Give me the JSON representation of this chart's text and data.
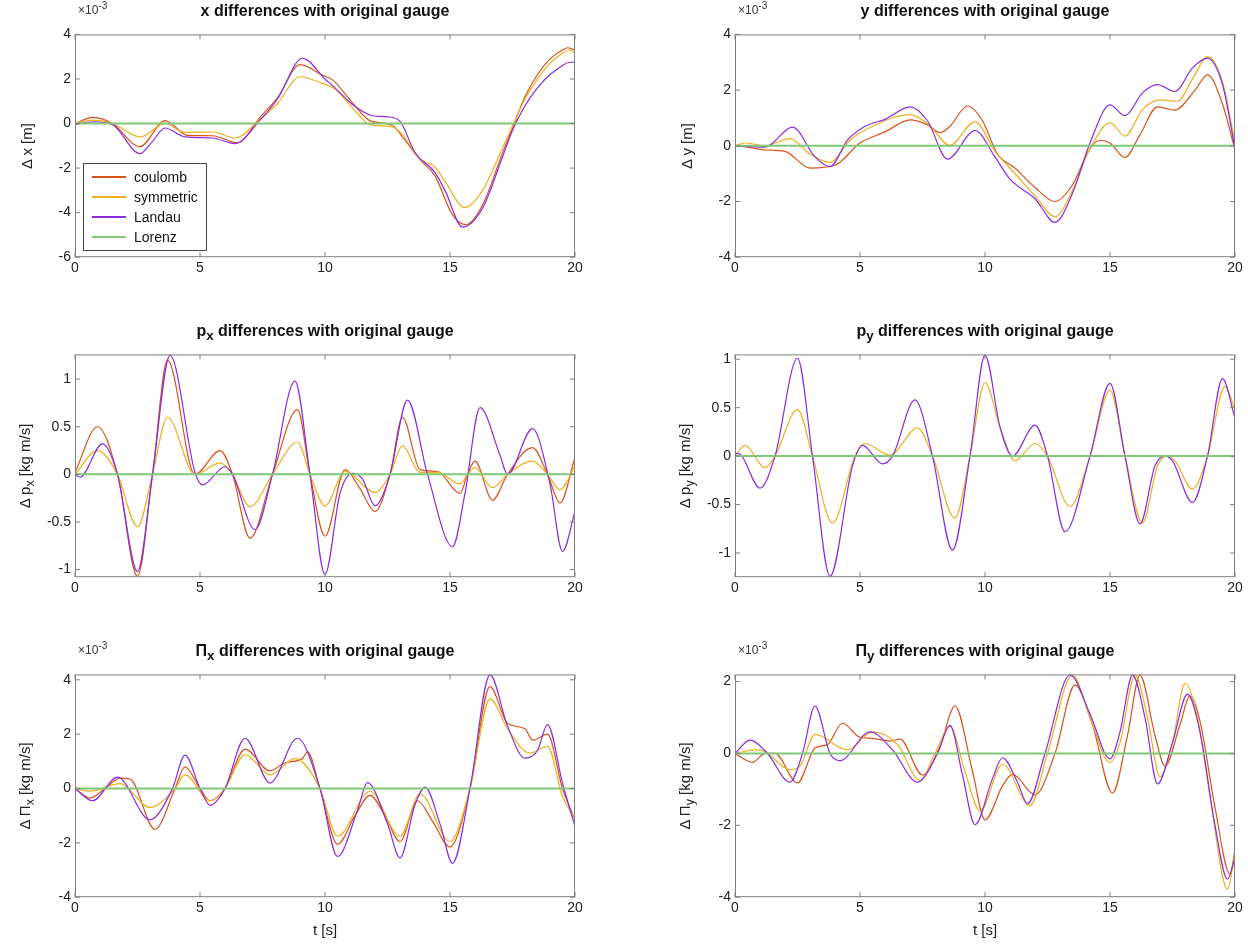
{
  "chart_data": [
    {
      "type": "line",
      "title": "x differences with original gauge",
      "ylabel": "Δ x [m]",
      "annotations": [
        "×10$^{-3}$"
      ],
      "legend": "bottom left",
      "xlim": [
        0,
        20
      ],
      "xticks": [
        0,
        5,
        10,
        15,
        20
      ],
      "ylim": [
        -6,
        4
      ],
      "yticks": [
        -6,
        -4,
        -2,
        0,
        2,
        4
      ],
      "series": [
        {
          "name": "coulomb",
          "color": "#d95319",
          "x": [
            0,
            0.7,
            1.5,
            2.6,
            3.6,
            4.5,
            5.5,
            6.5,
            7.4,
            8.1,
            9,
            9.9,
            10.3,
            11.1,
            11.8,
            12.7,
            13.1,
            13.8,
            14.4,
            15.1,
            15.65,
            16.3,
            17.1,
            17.5,
            18,
            18.5,
            19,
            19.5,
            19.7,
            20
          ],
          "values": [
            0,
            0.28,
            0,
            -1.04,
            0.13,
            -0.53,
            -0.55,
            -0.86,
            0.28,
            1.15,
            2.64,
            2.17,
            1.96,
            0.93,
            0.13,
            -0.09,
            -0.6,
            -1.62,
            -2.35,
            -4.1,
            -4.54,
            -3.66,
            -1.33,
            -0.2,
            1.2,
            2.2,
            2.9,
            3.3,
            3.4,
            3.3
          ]
        },
        {
          "name": "symmetric",
          "color": "#edb120",
          "x": [
            0,
            0.7,
            1.5,
            2.6,
            3.6,
            4.4,
            5.5,
            6.4,
            7.4,
            8.1,
            9,
            9.9,
            10.4,
            11.1,
            11.8,
            12.7,
            13.1,
            13.8,
            14.4,
            14.8,
            15.6,
            16.3,
            17.1,
            17.5,
            18,
            18.5,
            19,
            19.5,
            19.8,
            20
          ],
          "values": [
            0,
            0.15,
            0,
            -0.6,
            0,
            -0.4,
            -0.38,
            -0.65,
            0.2,
            0.9,
            2.1,
            1.8,
            1.55,
            0.7,
            -0.05,
            -0.15,
            -0.5,
            -1.6,
            -1.95,
            -2.6,
            -3.77,
            -3,
            -1.1,
            -0.1,
            1.1,
            2,
            2.7,
            3.15,
            3.3,
            3.15
          ]
        },
        {
          "name": "Landau",
          "color": "#8a2be2",
          "x": [
            0,
            0.7,
            1.5,
            2.6,
            3.1,
            3.6,
            4.4,
            5.5,
            6.4,
            7.4,
            8.1,
            9.1,
            10,
            10.4,
            11.1,
            11.9,
            12.5,
            13,
            13.6,
            14.4,
            14.8,
            15.5,
            16.3,
            17.1,
            17.5,
            18,
            18.5,
            19,
            19.3,
            19.8,
            20
          ],
          "values": [
            -0.05,
            0.08,
            -0.05,
            -1.35,
            -0.8,
            -0.2,
            -0.6,
            -0.65,
            -0.9,
            0.15,
            1.1,
            2.93,
            2,
            1.6,
            0.85,
            0.35,
            0.3,
            0.1,
            -1.3,
            -2.2,
            -3,
            -4.65,
            -3.8,
            -1.5,
            -0.3,
            0.8,
            1.6,
            2.2,
            2.45,
            2.75,
            2.75
          ]
        },
        {
          "name": "Lorenz",
          "color": "#80c878",
          "x": [
            0,
            20
          ],
          "values": [
            0,
            0
          ]
        }
      ]
    },
    {
      "type": "line",
      "title": "y differences with original gauge",
      "ylabel": "Δ y [m]",
      "annotations": [
        "×10$^{-3}$"
      ],
      "xlim": [
        0,
        20
      ],
      "xticks": [
        0,
        5,
        10,
        15,
        20
      ],
      "ylim": [
        -4,
        4
      ],
      "yticks": [
        -4,
        -2,
        0,
        2,
        4
      ],
      "series": [
        {
          "color": "#d95319",
          "x": [
            0,
            0.5,
            1.2,
            2,
            3,
            4,
            5,
            6,
            7,
            7.7,
            8.2,
            8.6,
            9.3,
            9.9,
            10.5,
            11.2,
            12,
            12.8,
            13.5,
            14.2,
            14.6,
            15,
            15.6,
            16.2,
            16.9,
            17.6,
            18.4,
            18.9,
            19.5,
            20
          ],
          "values": [
            0,
            -0.05,
            -0.15,
            -0.2,
            -0.8,
            -0.7,
            0.1,
            0.5,
            0.93,
            0.75,
            0.47,
            0.7,
            1.43,
            0.9,
            -0.3,
            -0.8,
            -1.5,
            -2,
            -1.4,
            -0.1,
            0.2,
            0.1,
            -0.42,
            0.4,
            1.4,
            1.28,
            2,
            2.55,
            1.5,
            -0.15
          ]
        },
        {
          "color": "#edb120",
          "x": [
            0,
            0.4,
            1.2,
            2.2,
            3,
            3.8,
            4.6,
            5.5,
            7,
            7.7,
            8.6,
            9.6,
            10.4,
            11.2,
            12,
            12.8,
            13.5,
            14.2,
            15,
            15.6,
            16.3,
            17,
            17.7,
            18.3,
            18.9,
            19.5,
            20
          ],
          "values": [
            0,
            0.1,
            0,
            0.26,
            -0.3,
            -0.6,
            0.2,
            0.7,
            1.12,
            0.8,
            0.02,
            0.87,
            -0.2,
            -1,
            -1.8,
            -2.55,
            -1.6,
            -0.1,
            0.82,
            0.35,
            1.3,
            1.65,
            1.6,
            2.4,
            3.2,
            2.3,
            0.1
          ]
        },
        {
          "color": "#8a2be2",
          "x": [
            0,
            1.2,
            2.3,
            3.2,
            3.8,
            4.5,
            5.2,
            6,
            7,
            7.7,
            8.5,
            9.6,
            10.4,
            11,
            12,
            12.8,
            13.5,
            14.2,
            15,
            15.6,
            16.3,
            16.9,
            17.6,
            18.3,
            18.9,
            19.5,
            20
          ],
          "values": [
            0,
            -0.05,
            0.67,
            -0.4,
            -0.75,
            0.2,
            0.7,
            0.95,
            1.4,
            0.9,
            -0.48,
            0.55,
            -0.4,
            -1.2,
            -1.9,
            -2.75,
            -1.7,
            0.1,
            1.47,
            1.08,
            1.9,
            2.2,
            1.95,
            2.8,
            3.15,
            2.2,
            -0.1
          ]
        },
        {
          "color": "#80c878",
          "x": [
            0,
            20
          ],
          "values": [
            0,
            0
          ]
        }
      ]
    },
    {
      "type": "line",
      "title": "p$_{x}$ differences with original gauge",
      "ylabel": "Δ p$_{x}$ [kg m/s]",
      "xlim": [
        0,
        20
      ],
      "xticks": [
        0,
        5,
        10,
        15,
        20
      ],
      "ylim": [
        -1.08,
        1.26
      ],
      "yticks": [
        -1,
        -0.5,
        0,
        0.5,
        1
      ],
      "series": [
        {
          "color": "#d95319",
          "x": [
            0,
            0.9,
            1.7,
            2.5,
            3.1,
            3.7,
            4.8,
            5.8,
            6.3,
            7,
            7.9,
            8.9,
            9.4,
            10,
            10.8,
            11.4,
            12,
            12.6,
            13.1,
            13.8,
            14.5,
            15.4,
            15.7,
            16,
            16.7,
            17.3,
            18.3,
            18.9,
            19.4,
            20
          ],
          "values": [
            0.02,
            0.5,
            0,
            -1.07,
            0,
            1.2,
            0,
            0.25,
            0,
            -0.67,
            0,
            0.68,
            0,
            -0.65,
            0.05,
            -0.15,
            -0.39,
            0,
            0.6,
            0.05,
            0.03,
            -0.2,
            0,
            0.14,
            -0.27,
            0,
            0.28,
            0,
            -0.3,
            0.18
          ]
        },
        {
          "color": "#edb120",
          "x": [
            0,
            0.9,
            1.7,
            2.5,
            3.1,
            3.7,
            4.8,
            5.8,
            6.3,
            7,
            7.9,
            8.9,
            9.4,
            10,
            10.8,
            12,
            12.6,
            13.1,
            13.8,
            14.5,
            15.4,
            15.7,
            16,
            16.7,
            17.3,
            18.3,
            18.9,
            19.4,
            20
          ],
          "values": [
            0,
            0.25,
            0,
            -0.55,
            0,
            0.6,
            0,
            0.12,
            0,
            -0.34,
            0,
            0.34,
            0,
            -0.33,
            0.03,
            -0.19,
            0,
            0.3,
            0.02,
            0.02,
            -0.1,
            0,
            0.07,
            -0.14,
            0,
            0.14,
            0,
            -0.16,
            0.09
          ]
        },
        {
          "color": "#8a2be2",
          "x": [
            0,
            0.2,
            1.1,
            1.7,
            2.5,
            3.1,
            3.8,
            4.8,
            5.1,
            6,
            6.3,
            7.2,
            7.9,
            8.8,
            9.4,
            10,
            10.6,
            11.1,
            11.5,
            12,
            12.6,
            13.3,
            14.1,
            15.1,
            15.6,
            16.2,
            17,
            17.3,
            18.3,
            19,
            19.5,
            20
          ],
          "values": [
            0,
            -0.03,
            0.32,
            0,
            -1.02,
            0,
            1.25,
            0.02,
            -0.11,
            0.08,
            0,
            -0.58,
            0,
            0.98,
            0,
            -1.05,
            -0.2,
            0.01,
            -0.05,
            -0.33,
            0,
            0.78,
            0,
            -0.76,
            -0.2,
            0.7,
            0.2,
            0,
            0.48,
            -0.1,
            -0.81,
            -0.39
          ]
        },
        {
          "color": "#80c878",
          "x": [
            0,
            20
          ],
          "values": [
            0,
            0
          ]
        }
      ]
    },
    {
      "type": "line",
      "title": "p$_{y}$ differences with original gauge",
      "ylabel": "Δ p$_{y}$ [kg m/s]",
      "xlim": [
        0,
        20
      ],
      "xticks": [
        0,
        5,
        10,
        15,
        20
      ],
      "ylim": [
        -1.25,
        1.05
      ],
      "yticks": [
        -1,
        -0.5,
        0,
        0.5,
        1
      ],
      "series": [
        {
          "color": "#edb120",
          "x": [
            0,
            0.4,
            1.2,
            1.6,
            2.5,
            3.1,
            3.9,
            4.8,
            5.2,
            6.2,
            7.3,
            7.9,
            8.8,
            9.4,
            10,
            10.6,
            11.2,
            12,
            12.5,
            13.4,
            14.2,
            15,
            15.6,
            16.3,
            16.9,
            17.3,
            17.6,
            18.3,
            18.9,
            19.6,
            20
          ],
          "values": [
            0,
            0.11,
            -0.12,
            0,
            0.48,
            0,
            -0.69,
            0,
            0.13,
            0.01,
            0.29,
            0,
            -0.64,
            0,
            0.76,
            0.3,
            -0.05,
            0.13,
            0,
            -0.52,
            0,
            0.68,
            0,
            -0.69,
            -0.1,
            0,
            -0.05,
            -0.34,
            0,
            0.72,
            0.48
          ]
        },
        {
          "color": "#8a2be2",
          "x": [
            0,
            0.2,
            1,
            1.6,
            2.5,
            3.1,
            3.8,
            4.7,
            5.1,
            5.9,
            6.3,
            7.2,
            7.9,
            8.7,
            9.4,
            10,
            10.6,
            11.1,
            12,
            12.5,
            13.2,
            14.2,
            15,
            15.6,
            16.2,
            16.8,
            17.2,
            17.5,
            18.3,
            18.9,
            19.5,
            20
          ],
          "values": [
            0.03,
            0.02,
            -0.33,
            0,
            1.01,
            0,
            -1.24,
            -0.1,
            0.11,
            -0.08,
            0,
            0.58,
            0,
            -0.97,
            0,
            1.04,
            0.3,
            0,
            0.32,
            0,
            -0.78,
            0,
            0.75,
            0,
            -0.7,
            -0.1,
            0,
            -0.05,
            -0.48,
            0,
            0.8,
            0.39
          ]
        },
        {
          "color": "#80c878",
          "x": [
            0,
            20
          ],
          "values": [
            0,
            0
          ]
        }
      ]
    },
    {
      "type": "line",
      "title": "Π$_{x}$ differences with original gauge",
      "xlabel": "t [s]",
      "ylabel": "Δ Π$_{x}$ [kg m/s]",
      "annotations": [
        "×10$^{-3}$"
      ],
      "xlim": [
        0,
        20
      ],
      "xticks": [
        0,
        5,
        10,
        15,
        20
      ],
      "ylim": [
        -4,
        4.2
      ],
      "yticks": [
        -4,
        -2,
        0,
        2,
        4
      ],
      "series": [
        {
          "color": "#d95319",
          "x": [
            0,
            0.6,
            1.2,
            1.8,
            2.2,
            3.2,
            4,
            4.4,
            5,
            5.4,
            6,
            6.8,
            7.8,
            8.4,
            9.1,
            9.3,
            9.8,
            10.5,
            11.2,
            11.8,
            12.4,
            13,
            13.7,
            14.3,
            15,
            15.8,
            16.6,
            17.3,
            18,
            18.3,
            18.9,
            19.5,
            20
          ],
          "values": [
            0,
            -0.35,
            0,
            0.38,
            0.35,
            -1.5,
            0,
            0.8,
            0,
            -0.45,
            0,
            1.45,
            0.65,
            0.95,
            1.1,
            1.35,
            0,
            -2.05,
            -1,
            -0.25,
            -1,
            -1.95,
            -0.45,
            -1.2,
            -2.15,
            0,
            3.75,
            2.4,
            2.2,
            1.78,
            2,
            0,
            -1.15
          ]
        },
        {
          "color": "#edb120",
          "x": [
            0,
            0.6,
            1.8,
            3,
            4,
            4.4,
            5.4,
            6,
            6.8,
            7.8,
            8.8,
            9.8,
            10.5,
            11.8,
            13,
            13.8,
            15,
            15.8,
            16.6,
            17.3,
            18.2,
            18.9,
            19.5,
            20
          ],
          "values": [
            0,
            -0.1,
            0.18,
            -0.7,
            0,
            0.5,
            -0.45,
            0,
            1.25,
            0.5,
            1.1,
            0,
            -1.75,
            -0.1,
            -1.75,
            -0.2,
            -1.95,
            0,
            3.3,
            2.2,
            1.3,
            1.55,
            -0.3,
            -1.1
          ]
        },
        {
          "color": "#8a2be2",
          "x": [
            0,
            0.7,
            1.7,
            3,
            3.9,
            4.4,
            5,
            5.4,
            6,
            6.8,
            7.8,
            8.9,
            9.8,
            10.5,
            11.3,
            11.7,
            12.5,
            13,
            13.6,
            14,
            14.6,
            15.1,
            15.8,
            16.6,
            17.3,
            18,
            18.5,
            18.9,
            19.5,
            20
          ],
          "values": [
            0,
            -0.45,
            0.42,
            -1.15,
            0,
            1.23,
            0,
            -0.62,
            0,
            1.85,
            0.2,
            1.85,
            0,
            -2.5,
            -0.8,
            0.22,
            -1.3,
            -2.55,
            -0.6,
            0.05,
            -1.3,
            -2.75,
            0,
            4.18,
            2.3,
            1.12,
            1.4,
            2.35,
            0.2,
            -1.4
          ]
        },
        {
          "color": "#80c878",
          "x": [
            0,
            20
          ],
          "values": [
            0,
            0
          ]
        }
      ]
    },
    {
      "type": "line",
      "title": "Π$_{y}$ differences with original gauge",
      "xlabel": "t [s]",
      "ylabel": "Δ Π$_{y}$ [kg m/s]",
      "annotations": [
        "×10$^{-3}$"
      ],
      "xlim": [
        0,
        20
      ],
      "xticks": [
        0,
        5,
        10,
        15,
        20
      ],
      "ylim": [
        -4,
        2.2
      ],
      "yticks": [
        -4,
        -2,
        0,
        2
      ],
      "series": [
        {
          "color": "#d95319",
          "x": [
            0,
            0.7,
            1.2,
            1.6,
            2.5,
            3.2,
            3.7,
            4.3,
            5,
            5.5,
            6.2,
            6.6,
            7.5,
            8.2,
            8.8,
            9.5,
            10,
            10.7,
            11.1,
            12,
            12.8,
            13.6,
            14.3,
            15.1,
            15.7,
            16.2,
            16.8,
            17.2,
            17.8,
            18.2,
            18.6,
            19.2,
            19.8,
            20
          ],
          "values": [
            0,
            -0.25,
            0,
            0,
            -0.82,
            0.15,
            0.25,
            0.84,
            0.45,
            0.42,
            0.35,
            0.4,
            -0.6,
            0.2,
            1.32,
            -0.5,
            -1.85,
            -0.9,
            -0.58,
            -1.15,
            0,
            1.9,
            0.8,
            -1.1,
            0.5,
            2.18,
            0.5,
            -0.35,
            0.8,
            1.6,
            0.9,
            -1.5,
            -3.35,
            -2.7
          ]
        },
        {
          "color": "#edb120",
          "x": [
            0,
            0.8,
            1.2,
            2.2,
            2.6,
            3.2,
            4.5,
            5.5,
            6.5,
            7.4,
            8,
            8.6,
            9.2,
            9.8,
            10.7,
            11.8,
            12.5,
            13.5,
            14.2,
            15,
            15.4,
            16,
            16.5,
            17,
            17.5,
            18,
            18.5,
            19,
            19.7,
            20
          ],
          "values": [
            0,
            0.1,
            0.05,
            -0.45,
            -0.35,
            0.53,
            0.1,
            0.6,
            0.25,
            -0.75,
            0,
            0.75,
            -0.5,
            -1.6,
            -0.3,
            -1.45,
            0,
            2.18,
            1,
            -0.25,
            0.3,
            2.18,
            1,
            -0.65,
            0.3,
            1.95,
            1,
            -1.2,
            -3.78,
            -2.75
          ]
        },
        {
          "color": "#8a2be2",
          "x": [
            0,
            0.6,
            1.3,
            2.2,
            2.7,
            3.2,
            3.8,
            4.2,
            5.4,
            6.3,
            7.3,
            8.1,
            8.6,
            9.1,
            9.6,
            10.3,
            10.7,
            11.3,
            11.7,
            12.4,
            13.4,
            14.2,
            15,
            15.4,
            15.9,
            16.4,
            16.9,
            17.5,
            18.1,
            18.6,
            19.2,
            19.7,
            20
          ],
          "values": [
            0,
            0.37,
            0,
            -0.8,
            0,
            1.32,
            0,
            -0.2,
            0.6,
            0.1,
            -0.8,
            0,
            0.78,
            -0.6,
            -1.98,
            -0.7,
            -0.12,
            -0.8,
            -1.4,
            0,
            2.18,
            1.1,
            -0.15,
            0.6,
            2.18,
            1,
            -0.85,
            0.3,
            1.65,
            0.6,
            -2,
            -3.5,
            -2.9
          ]
        },
        {
          "color": "#80c878",
          "x": [
            0,
            20
          ],
          "values": [
            0,
            0
          ]
        }
      ]
    }
  ]
}
